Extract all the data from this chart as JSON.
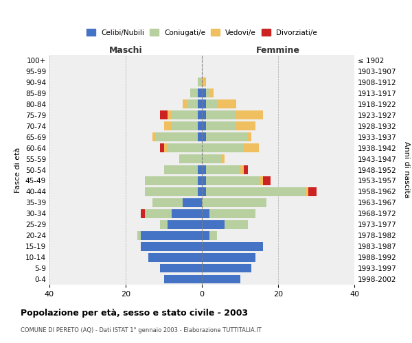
{
  "age_groups": [
    "0-4",
    "5-9",
    "10-14",
    "15-19",
    "20-24",
    "25-29",
    "30-34",
    "35-39",
    "40-44",
    "45-49",
    "50-54",
    "55-59",
    "60-64",
    "65-69",
    "70-74",
    "75-79",
    "80-84",
    "85-89",
    "90-94",
    "95-99",
    "100+"
  ],
  "birth_years": [
    "1998-2002",
    "1993-1997",
    "1988-1992",
    "1983-1987",
    "1978-1982",
    "1973-1977",
    "1968-1972",
    "1963-1967",
    "1958-1962",
    "1953-1957",
    "1948-1952",
    "1943-1947",
    "1938-1942",
    "1933-1937",
    "1928-1932",
    "1923-1927",
    "1918-1922",
    "1913-1917",
    "1908-1912",
    "1903-1907",
    "≤ 1902"
  ],
  "maschi": {
    "celibi": [
      10,
      11,
      14,
      16,
      16,
      9,
      8,
      5,
      1,
      1,
      1,
      0,
      0,
      1,
      1,
      1,
      1,
      1,
      0,
      0,
      0
    ],
    "coniugati": [
      0,
      0,
      0,
      0,
      1,
      2,
      7,
      8,
      14,
      14,
      9,
      6,
      9,
      11,
      7,
      7,
      3,
      2,
      1,
      0,
      0
    ],
    "vedovi": [
      0,
      0,
      0,
      0,
      0,
      0,
      0,
      0,
      0,
      0,
      0,
      0,
      1,
      1,
      2,
      1,
      1,
      0,
      0,
      0,
      0
    ],
    "divorziati": [
      0,
      0,
      0,
      0,
      0,
      0,
      1,
      0,
      0,
      0,
      0,
      0,
      1,
      0,
      0,
      2,
      0,
      0,
      0,
      0,
      0
    ]
  },
  "femmine": {
    "nubili": [
      10,
      13,
      14,
      16,
      2,
      6,
      2,
      0,
      1,
      1,
      1,
      0,
      0,
      1,
      1,
      1,
      1,
      1,
      0,
      0,
      0
    ],
    "coniugate": [
      0,
      0,
      0,
      0,
      2,
      6,
      12,
      17,
      26,
      14,
      9,
      5,
      11,
      11,
      8,
      8,
      3,
      1,
      0,
      0,
      0
    ],
    "vedove": [
      0,
      0,
      0,
      0,
      0,
      0,
      0,
      0,
      1,
      1,
      1,
      1,
      4,
      1,
      5,
      7,
      5,
      1,
      1,
      0,
      0
    ],
    "divorziate": [
      0,
      0,
      0,
      0,
      0,
      0,
      0,
      0,
      2,
      2,
      1,
      0,
      0,
      0,
      0,
      0,
      0,
      0,
      0,
      0,
      0
    ]
  },
  "colors": {
    "celibi": "#4472c4",
    "coniugati": "#b8cfa0",
    "vedovi": "#f0c060",
    "divorziati": "#cc2222"
  },
  "xlim": [
    -40,
    40
  ],
  "xticks": [
    -40,
    -20,
    0,
    20,
    40
  ],
  "xticklabels": [
    "40",
    "20",
    "0",
    "20",
    "40"
  ],
  "title": "Popolazione per età, sesso e stato civile - 2003",
  "subtitle": "COMUNE DI PERETO (AQ) - Dati ISTAT 1° gennaio 2003 - Elaborazione TUTTITALIA.IT",
  "ylabel_left": "Fasce di età",
  "ylabel_right": "Anni di nascita",
  "label_maschi": "Maschi",
  "label_femmine": "Femmine",
  "legend_labels": [
    "Celibi/Nubili",
    "Coniugati/e",
    "Vedovi/e",
    "Divorziati/e"
  ],
  "bg_color": "#ffffff",
  "plot_bg_color": "#efefef"
}
